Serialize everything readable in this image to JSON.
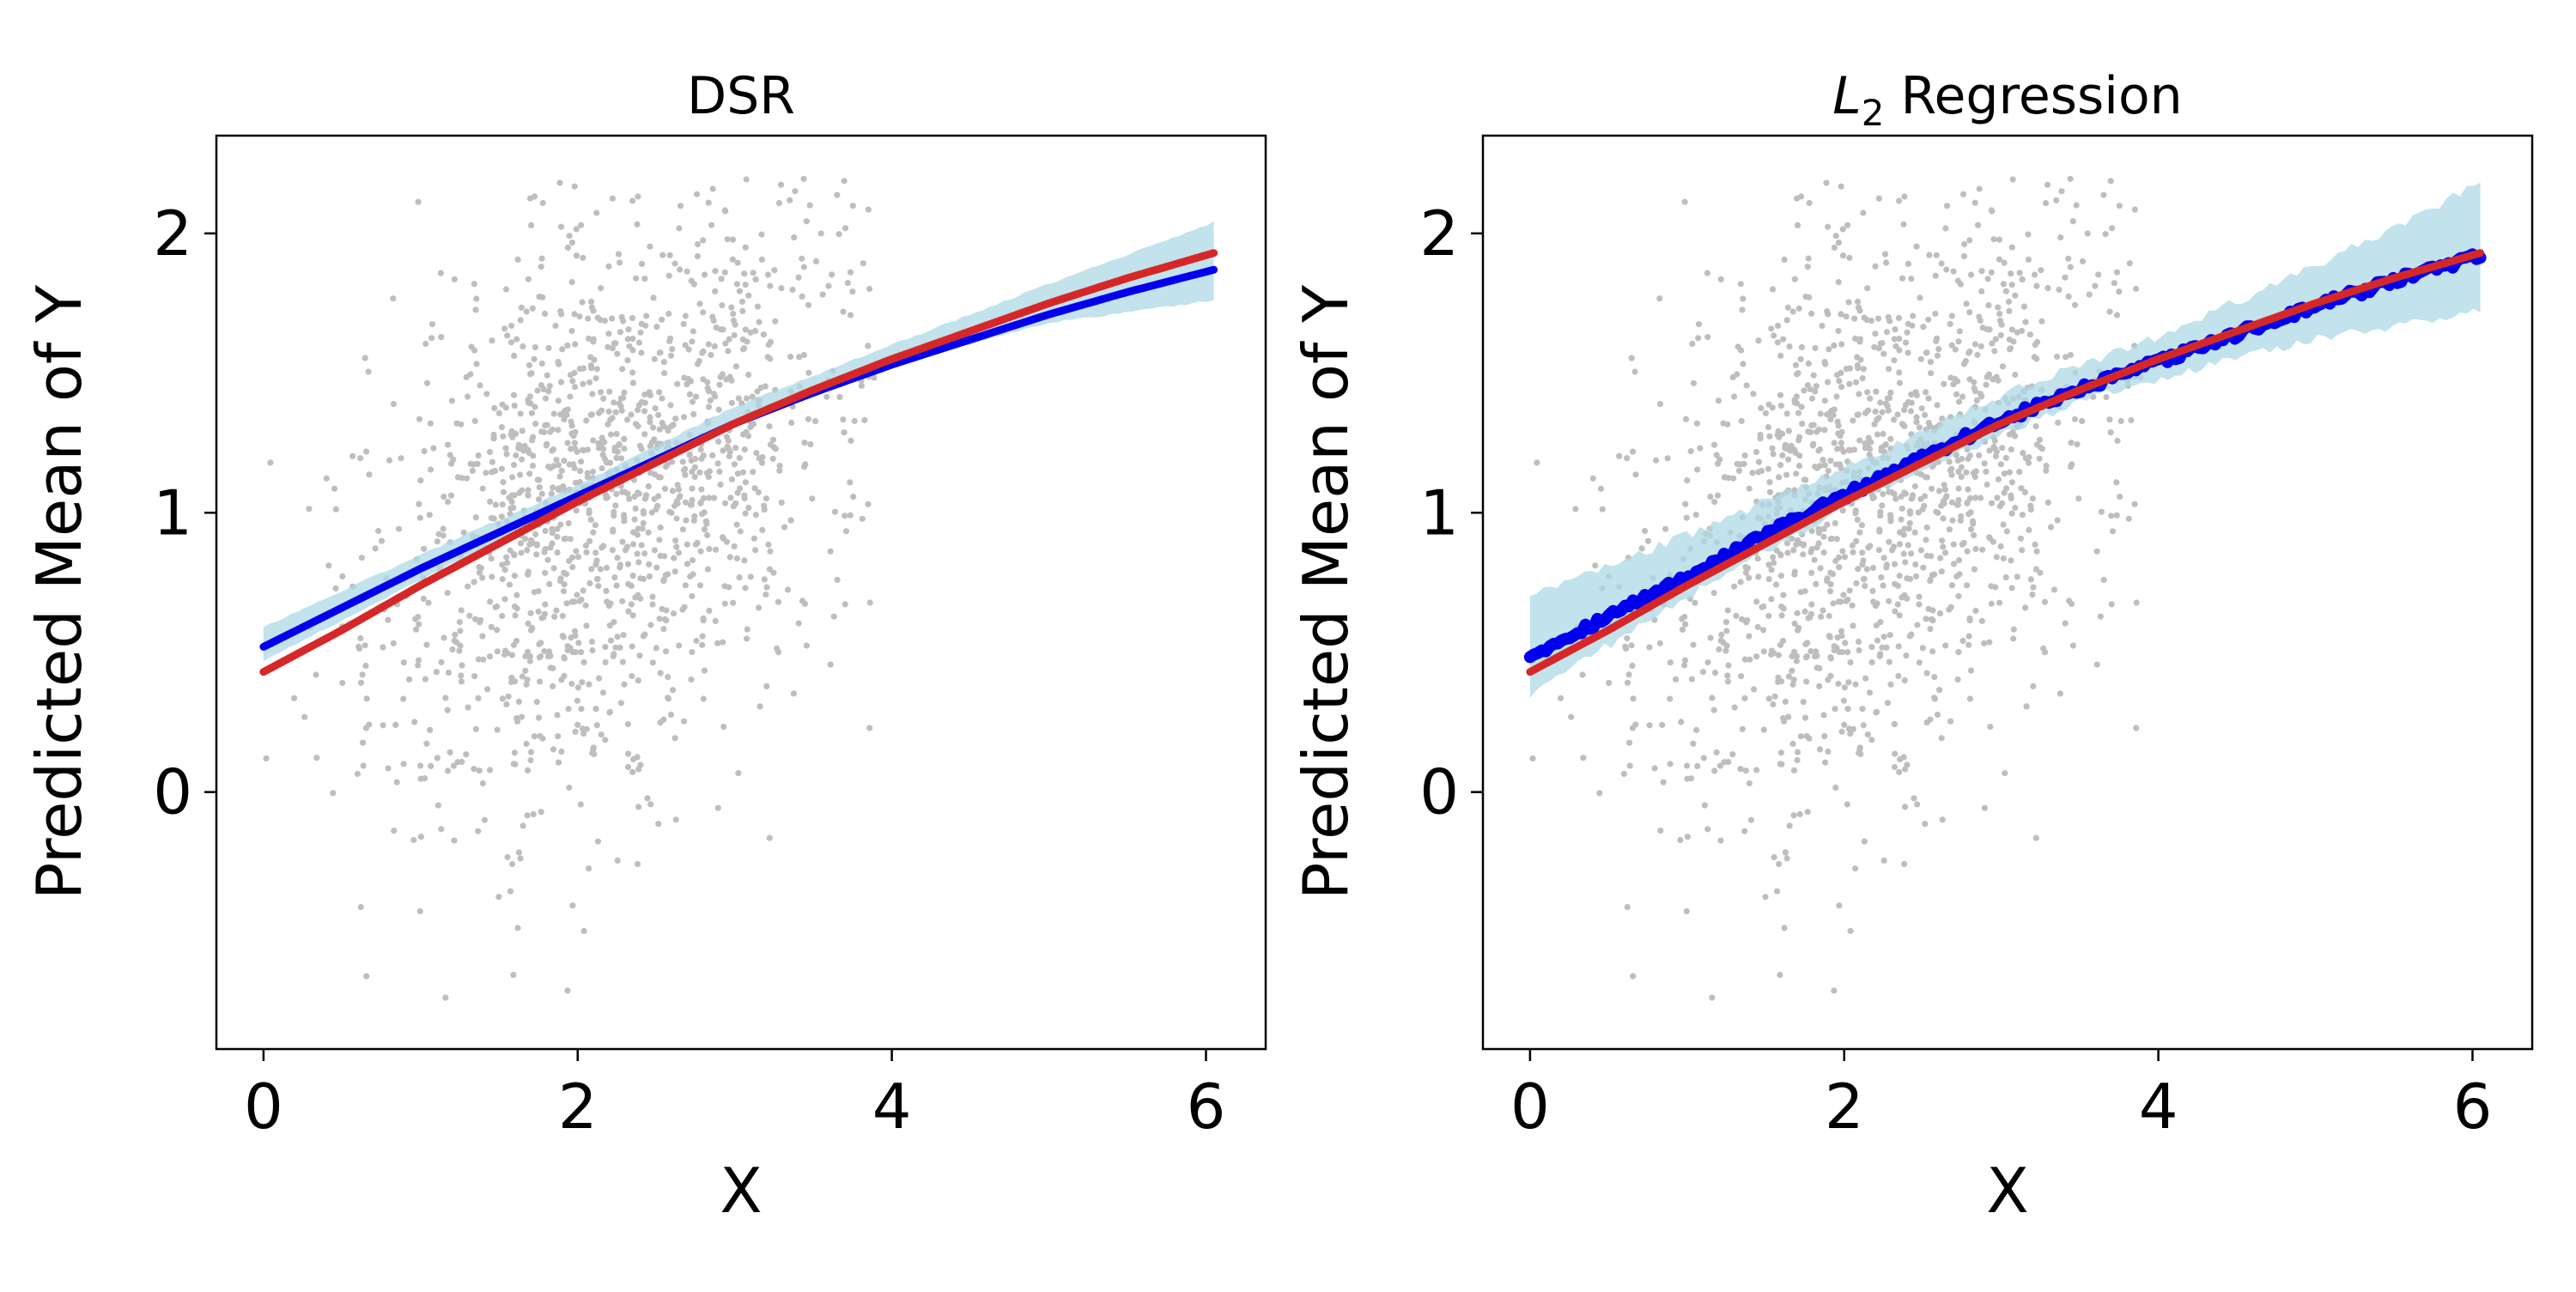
{
  "chart_data": [
    {
      "type": "scatter",
      "title": "DSR",
      "title_math": false,
      "xlabel": "X",
      "ylabel": "Predicted Mean of Y",
      "xlim": [
        -0.3,
        6.38
      ],
      "ylim": [
        -0.92,
        2.35
      ],
      "xticks": [
        0,
        2,
        4,
        6
      ],
      "yticks": [
        0,
        1,
        2
      ],
      "grid": false,
      "series": [
        {
          "kind": "band",
          "color": "#add8e6",
          "x": [
            0,
            1,
            2,
            3,
            3.5,
            4,
            5,
            6.05
          ],
          "lower": [
            0.47,
            0.76,
            1.04,
            1.31,
            1.43,
            1.53,
            1.68,
            1.76
          ],
          "upper": [
            0.59,
            0.85,
            1.1,
            1.38,
            1.49,
            1.6,
            1.82,
            2.04
          ]
        },
        {
          "kind": "line",
          "color": "#0000ee",
          "x": [
            0,
            0.5,
            1,
            1.5,
            2,
            2.5,
            3,
            3.5,
            4,
            4.5,
            5,
            5.5,
            6.05
          ],
          "y": [
            0.52,
            0.66,
            0.8,
            0.93,
            1.06,
            1.19,
            1.32,
            1.43,
            1.53,
            1.62,
            1.71,
            1.79,
            1.87
          ]
        },
        {
          "kind": "line",
          "color": "#d62728",
          "x": [
            0,
            0.5,
            1,
            1.5,
            2,
            2.5,
            3,
            3.5,
            4,
            4.5,
            5,
            5.5,
            6.05
          ],
          "y": [
            0.43,
            0.58,
            0.74,
            0.89,
            1.04,
            1.18,
            1.32,
            1.44,
            1.55,
            1.65,
            1.75,
            1.84,
            1.93
          ]
        }
      ]
    },
    {
      "type": "scatter",
      "title": "L2 Regression",
      "title_math": true,
      "title_base": "L",
      "title_sub": "2",
      "title_rest": " Regression",
      "xlabel": "X",
      "ylabel": "Predicted Mean of Y",
      "xlim": [
        -0.3,
        6.38
      ],
      "ylim": [
        -0.92,
        2.35
      ],
      "xticks": [
        0,
        2,
        4,
        6
      ],
      "yticks": [
        0,
        1,
        2
      ],
      "grid": false,
      "series": [
        {
          "kind": "band",
          "color": "#add8e6",
          "x": [
            0,
            1,
            2,
            3,
            3.5,
            4,
            5,
            6.05
          ],
          "lower": [
            0.35,
            0.7,
            1.02,
            1.28,
            1.4,
            1.48,
            1.62,
            1.72
          ],
          "upper": [
            0.7,
            0.92,
            1.16,
            1.42,
            1.53,
            1.63,
            1.88,
            2.18
          ]
        },
        {
          "kind": "line",
          "color": "#0000ee",
          "x": [
            0,
            0.5,
            1,
            1.5,
            2,
            2.5,
            3,
            3.5,
            4,
            4.5,
            5,
            5.5,
            6.05
          ],
          "y": [
            0.49,
            0.63,
            0.77,
            0.92,
            1.06,
            1.2,
            1.33,
            1.44,
            1.54,
            1.64,
            1.74,
            1.83,
            1.92
          ]
        },
        {
          "kind": "line",
          "color": "#d62728",
          "x": [
            0,
            0.5,
            1,
            1.5,
            2,
            2.5,
            3,
            3.5,
            4,
            4.5,
            5,
            5.5,
            6.05
          ],
          "y": [
            0.43,
            0.58,
            0.74,
            0.89,
            1.04,
            1.18,
            1.32,
            1.44,
            1.55,
            1.65,
            1.75,
            1.84,
            1.93
          ]
        }
      ]
    }
  ],
  "scatter_color": "#bebebe",
  "scatter_points_per_panel": 1400
}
